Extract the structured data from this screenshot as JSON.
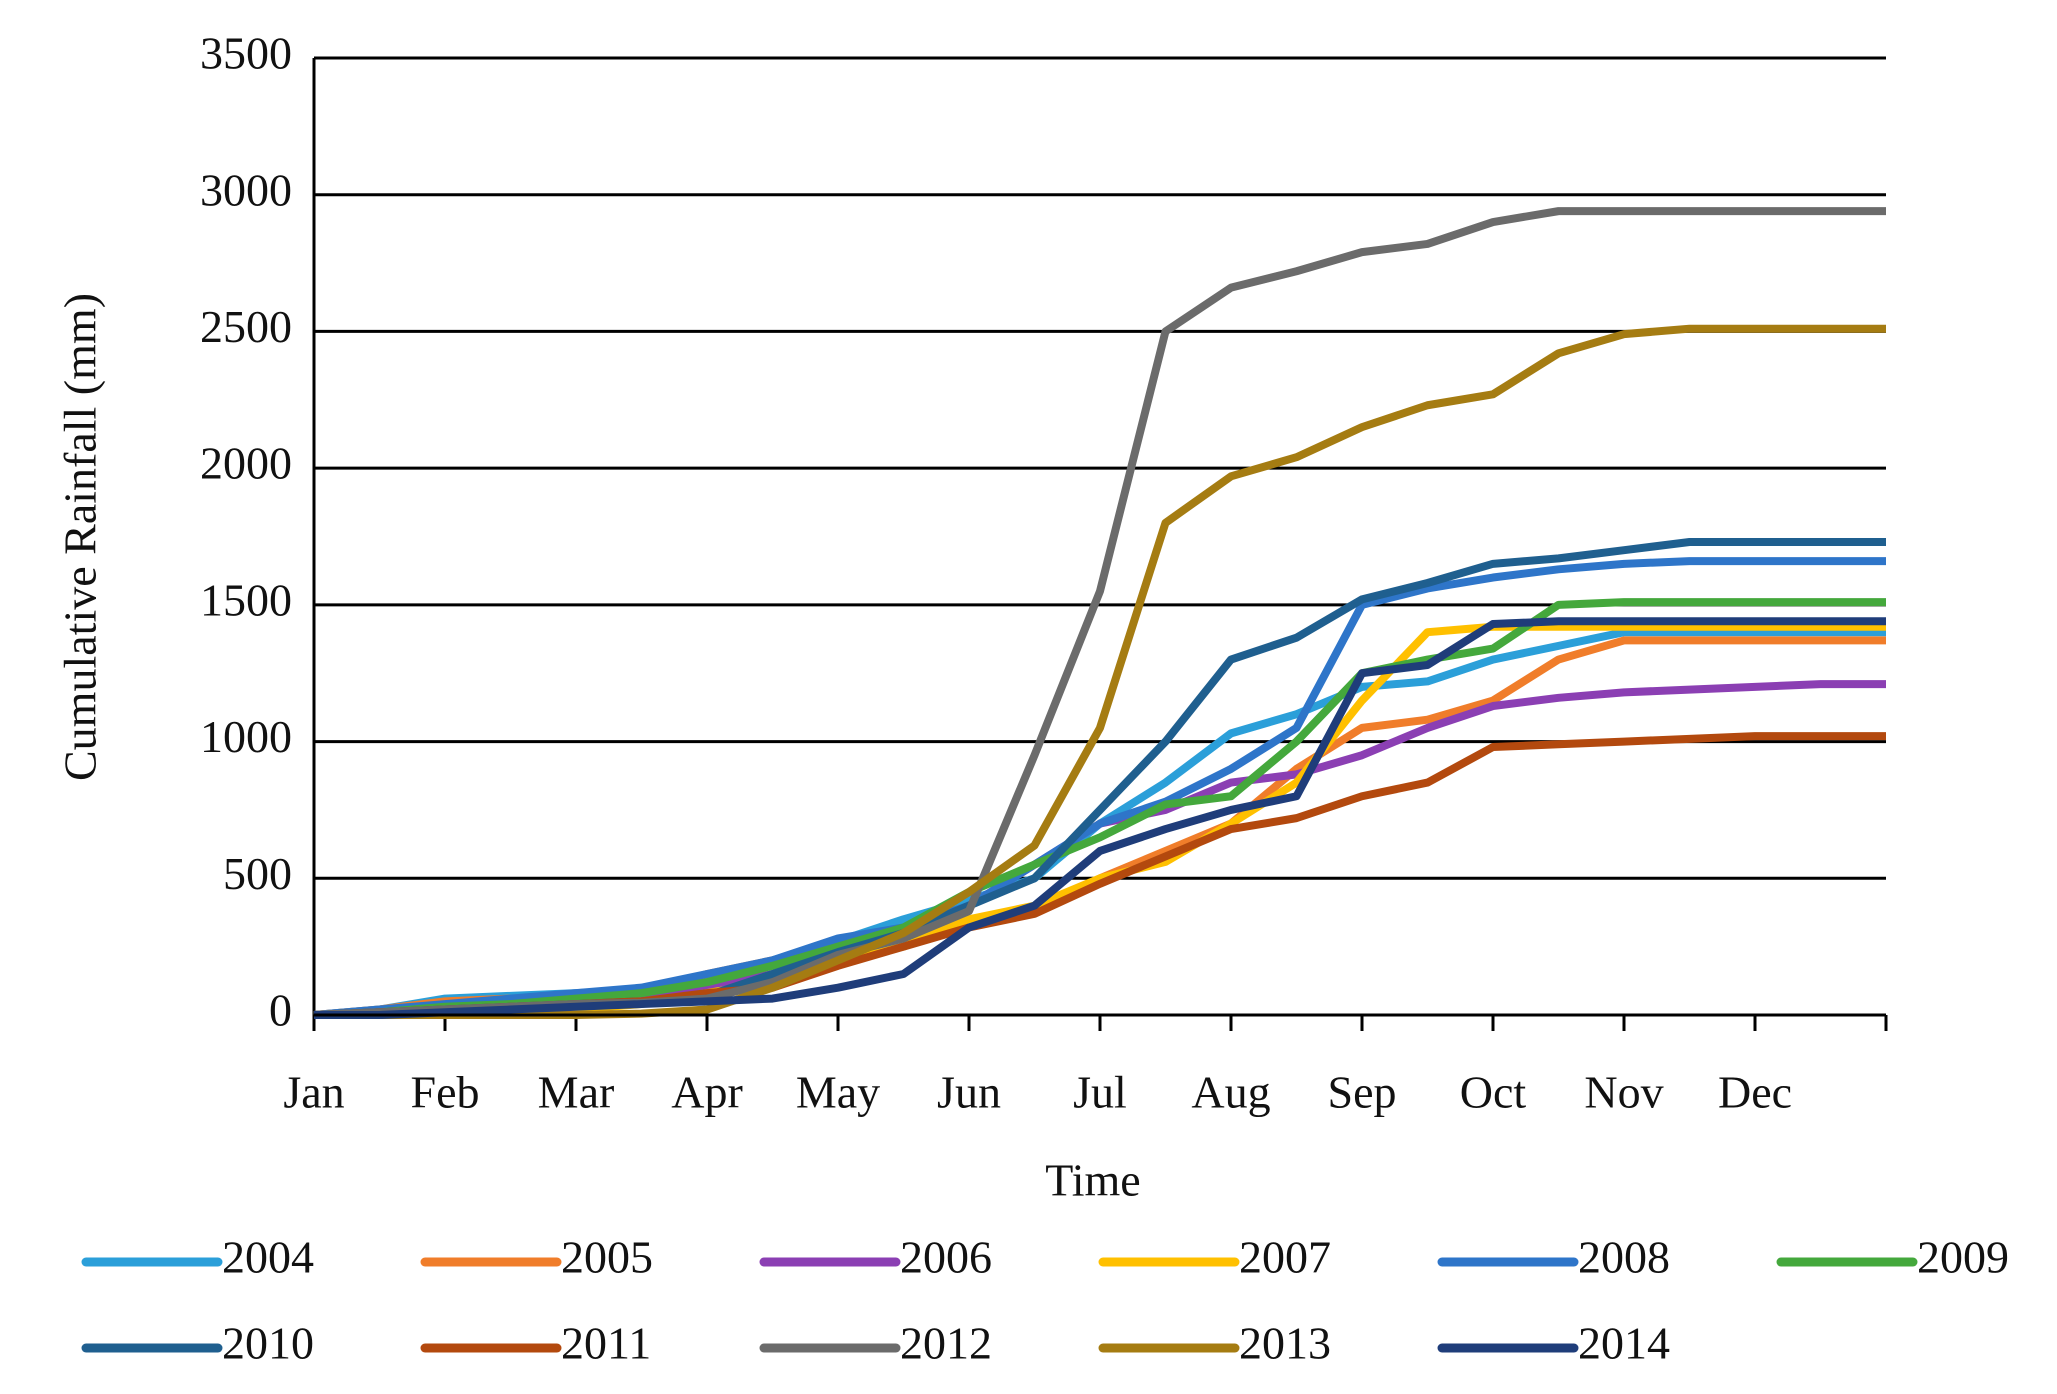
{
  "chart_data": {
    "type": "line",
    "x_label": "Time",
    "y_label": "Cumulative Rainfall (mm)",
    "categories": [
      "Jan",
      null,
      "Feb",
      null,
      "Mar",
      null,
      "Apr",
      null,
      "May",
      null,
      "Jun",
      null,
      "Jul",
      null,
      "Aug",
      null,
      "Sep",
      null,
      "Oct",
      null,
      "Nov",
      null,
      "Dec",
      null,
      null
    ],
    "ylim": [
      0,
      3500
    ],
    "yticks": [
      0,
      500,
      1000,
      1500,
      2000,
      2500,
      3000,
      3500
    ],
    "grid": true,
    "series": [
      {
        "name": "2004",
        "color": "#2b9fd9",
        "values": [
          0,
          20,
          60,
          70,
          80,
          90,
          120,
          200,
          270,
          350,
          420,
          500,
          700,
          850,
          1030,
          1100,
          1200,
          1220,
          1300,
          1350,
          1400,
          1400,
          1400,
          1400,
          1400
        ]
      },
      {
        "name": "2005",
        "color": "#f07d2a",
        "values": [
          0,
          20,
          50,
          60,
          70,
          80,
          150,
          200,
          250,
          300,
          350,
          380,
          500,
          600,
          700,
          900,
          1050,
          1080,
          1150,
          1300,
          1370,
          1370,
          1370,
          1370,
          1370
        ]
      },
      {
        "name": "2006",
        "color": "#8b3fb3",
        "values": [
          0,
          10,
          30,
          40,
          50,
          60,
          100,
          150,
          220,
          300,
          400,
          550,
          700,
          750,
          850,
          880,
          950,
          1050,
          1130,
          1160,
          1180,
          1190,
          1200,
          1210,
          1210
        ]
      },
      {
        "name": "2007",
        "color": "#ffc000",
        "values": [
          0,
          0,
          0,
          10,
          20,
          40,
          80,
          120,
          200,
          250,
          350,
          400,
          500,
          560,
          700,
          850,
          1150,
          1400,
          1420,
          1420,
          1420,
          1420,
          1420,
          1420,
          1420
        ]
      },
      {
        "name": "2008",
        "color": "#2e75c9",
        "values": [
          0,
          20,
          40,
          60,
          80,
          100,
          150,
          200,
          280,
          320,
          400,
          550,
          700,
          780,
          900,
          1050,
          1500,
          1560,
          1600,
          1630,
          1650,
          1660,
          1660,
          1660,
          1660
        ]
      },
      {
        "name": "2009",
        "color": "#44a83c",
        "values": [
          0,
          10,
          30,
          40,
          60,
          80,
          120,
          180,
          250,
          320,
          450,
          550,
          650,
          770,
          800,
          1000,
          1250,
          1300,
          1340,
          1500,
          1510,
          1510,
          1510,
          1510,
          1510
        ]
      },
      {
        "name": "2010",
        "color": "#1f5f8f",
        "values": [
          0,
          10,
          20,
          30,
          40,
          50,
          70,
          150,
          230,
          300,
          400,
          500,
          750,
          1000,
          1300,
          1380,
          1520,
          1580,
          1650,
          1670,
          1700,
          1730,
          1730,
          1730,
          1730
        ]
      },
      {
        "name": "2011",
        "color": "#b3490e",
        "values": [
          0,
          10,
          20,
          30,
          40,
          50,
          80,
          100,
          180,
          250,
          320,
          370,
          480,
          580,
          680,
          720,
          800,
          850,
          980,
          990,
          1000,
          1010,
          1020,
          1020,
          1020
        ]
      },
      {
        "name": "2012",
        "color": "#6b6b6b",
        "values": [
          0,
          10,
          20,
          30,
          40,
          45,
          60,
          120,
          220,
          280,
          380,
          950,
          1550,
          2500,
          2660,
          2720,
          2790,
          2820,
          2900,
          2940,
          2940,
          2940,
          2940,
          2940,
          2940
        ]
      },
      {
        "name": "2013",
        "color": "#a57c12",
        "values": [
          0,
          0,
          0,
          0,
          0,
          5,
          20,
          100,
          200,
          300,
          450,
          620,
          1050,
          1800,
          1970,
          2040,
          2150,
          2230,
          2270,
          2420,
          2490,
          2510,
          2510,
          2510,
          2510
        ]
      },
      {
        "name": "2014",
        "color": "#1f3d7a",
        "values": [
          0,
          0,
          10,
          20,
          30,
          40,
          50,
          60,
          100,
          150,
          320,
          400,
          600,
          680,
          750,
          800,
          1250,
          1280,
          1430,
          1440,
          1440,
          1440,
          1440,
          1440,
          1440
        ]
      }
    ]
  }
}
